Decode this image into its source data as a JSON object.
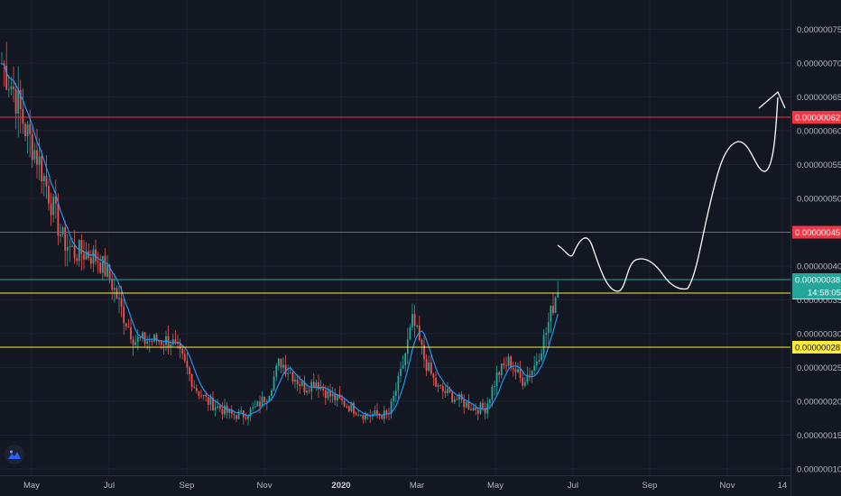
{
  "chart_data": {
    "type": "candlestick",
    "y_ticks": [
      "0.00000075",
      "0.00000070",
      "0.00000065",
      "0.00000060",
      "0.00000055",
      "0.00000050",
      "0.00000045",
      "0.00000040",
      "0.00000035",
      "0.00000030",
      "0.00000025",
      "0.00000020",
      "0.00000015",
      "0.00000010"
    ],
    "x_ticks": [
      "May",
      "Jul",
      "Sep",
      "Nov",
      "2020",
      "Mar",
      "May",
      "Jul",
      "Sep",
      "Nov",
      "14"
    ],
    "x_ticks_bold": [
      "2020"
    ],
    "ylim": [
      9e-08,
      7.9e-07
    ],
    "levels": [
      {
        "value": 6.2e-07,
        "label": "0.00000062",
        "color": "#f23645",
        "text_color": "#ffffff"
      },
      {
        "value": 4.5e-07,
        "label": "0.00000045",
        "color": "#f23645",
        "text_color": "#ffffff"
      },
      {
        "value": 3.8e-07,
        "label": "0.00000038",
        "color": "#26a69a",
        "text_color": "#ffffff"
      },
      {
        "value": 3.6e-07,
        "label": "0.00000036",
        "color": "#ffeb3b",
        "text_color": "#131722"
      },
      {
        "value": 2.8e-07,
        "label": "0.00000028",
        "color": "#ffeb3b",
        "text_color": "#131722"
      }
    ],
    "countdown": "14:58:05",
    "close_price": [
      7e-07,
      6.6e-07,
      6e-07,
      5.6e-07,
      5e-07,
      4.4e-07,
      4.2e-07,
      4.2e-07,
      4.1e-07,
      3.8e-07,
      3.3e-07,
      2.9e-07,
      2.9e-07,
      2.9e-07,
      2.9e-07,
      2.6e-07,
      2.2e-07,
      2e-07,
      1.9e-07,
      1.8e-07,
      1.8e-07,
      1.9e-07,
      2.1e-07,
      2.6e-07,
      2.4e-07,
      2.2e-07,
      2.3e-07,
      2.1e-07,
      2e-07,
      1.9e-07,
      1.8e-07,
      1.8e-07,
      1.8e-07,
      2.4e-07,
      3.2e-07,
      2.6e-07,
      2.2e-07,
      2.1e-07,
      2e-07,
      1.9e-07,
      1.9e-07,
      2.4e-07,
      2.6e-07,
      2.3e-07,
      2.5e-07,
      3e-07,
      3.7e-07
    ]
  },
  "colors": {
    "up": "#26a69a",
    "down": "#ef5350",
    "ma": "#2196f3",
    "projection": "#ffffff",
    "grid": "#1f2330"
  },
  "logo_icon": "tradingview-logo-icon"
}
